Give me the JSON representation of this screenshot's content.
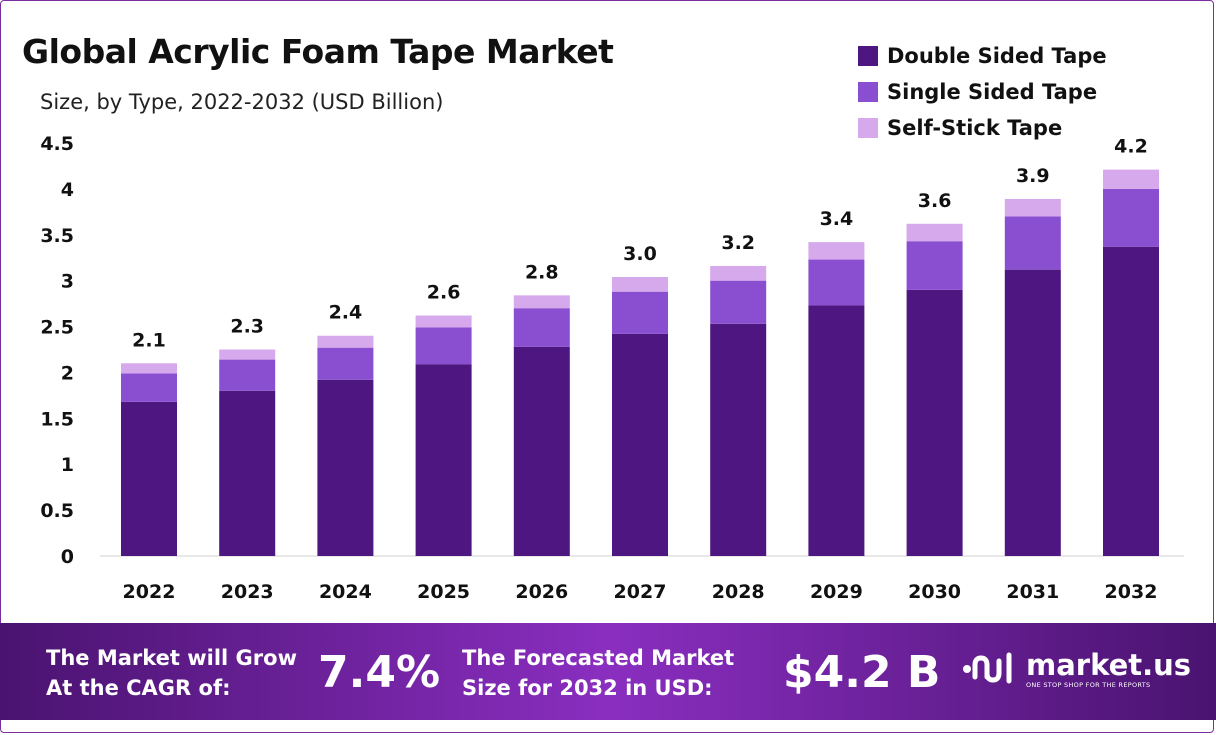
{
  "chart_data": {
    "type": "bar",
    "stacked": true,
    "title": "Global Acrylic Foam Tape Market",
    "subtitle": "Size, by Type, 2022-2032 (USD Billion)",
    "categories": [
      "2022",
      "2023",
      "2024",
      "2025",
      "2026",
      "2027",
      "2028",
      "2029",
      "2030",
      "2031",
      "2032"
    ],
    "series": [
      {
        "name": "Double Sided Tape",
        "color": "#4e1680",
        "values": [
          1.68,
          1.8,
          1.92,
          2.09,
          2.28,
          2.42,
          2.53,
          2.73,
          2.9,
          3.12,
          3.37
        ]
      },
      {
        "name": "Single Sided Tape",
        "color": "#8a4fd0",
        "values": [
          0.31,
          0.34,
          0.35,
          0.4,
          0.42,
          0.46,
          0.47,
          0.5,
          0.53,
          0.58,
          0.63
        ]
      },
      {
        "name": "Self-Stick Tape",
        "color": "#d6a8ec",
        "values": [
          0.11,
          0.11,
          0.13,
          0.13,
          0.14,
          0.16,
          0.16,
          0.19,
          0.19,
          0.19,
          0.21
        ]
      }
    ],
    "totals_labels": [
      "2.1",
      "2.3",
      "2.4",
      "2.6",
      "2.8",
      "3.0",
      "3.2",
      "3.4",
      "3.6",
      "3.9",
      "4.2"
    ],
    "totals": [
      2.1,
      2.25,
      2.4,
      2.62,
      2.84,
      3.04,
      3.16,
      3.42,
      3.62,
      3.89,
      4.21
    ],
    "y_ticks": [
      "0",
      "0.5",
      "1",
      "1.5",
      "2",
      "2.5",
      "3",
      "3.5",
      "4",
      "4.5"
    ],
    "ylim": [
      0,
      4.5
    ],
    "grid": false,
    "legend_position": "top-right"
  },
  "footer": {
    "cagr_label_line1": "The Market will Grow",
    "cagr_label_line2": "At the CAGR of:",
    "cagr_value": "7.4%",
    "forecast_label_line1": "The Forecasted Market",
    "forecast_label_line2": "Size for 2032 in USD:",
    "forecast_value": "$4.2 B",
    "brand_name": "market.us",
    "brand_tagline": "ONE STOP SHOP FOR THE REPORTS",
    "brand_icon": "market-us-logo-icon"
  }
}
